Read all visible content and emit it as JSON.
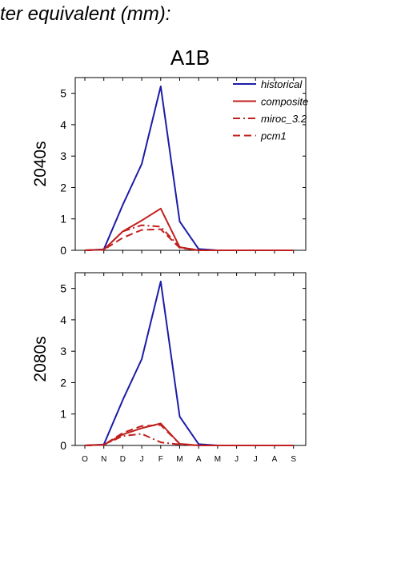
{
  "header": {
    "title": "ter equivalent (mm):",
    "scenario": "A1B"
  },
  "chart_data": [
    {
      "type": "line",
      "ylabel": "2040s",
      "x": [
        "O",
        "N",
        "D",
        "J",
        "F",
        "M",
        "A",
        "M",
        "J",
        "J",
        "A",
        "S"
      ],
      "ylim": [
        0,
        5.5
      ],
      "yticks": [
        0,
        1,
        2,
        3,
        4,
        5
      ],
      "legend_position": "top-right",
      "series": [
        {
          "name": "historical",
          "color": "#1c1ca8",
          "style": "solid",
          "values": [
            0.0,
            0.03,
            1.45,
            2.75,
            5.22,
            0.92,
            0.04,
            0.0,
            0.0,
            0.0,
            0.0,
            0.0
          ]
        },
        {
          "name": "composite",
          "color": "#c0201e",
          "style": "solid",
          "values": [
            0.0,
            0.02,
            0.6,
            0.95,
            1.33,
            0.1,
            0.0,
            0.0,
            0.0,
            0.0,
            0.0,
            0.0
          ]
        },
        {
          "name": "miroc_3.2",
          "color": "#c0201e",
          "style": "dashdot",
          "values": [
            0.0,
            0.02,
            0.6,
            0.8,
            0.75,
            0.1,
            0.0,
            0.0,
            0.0,
            0.0,
            0.0,
            0.0
          ]
        },
        {
          "name": "pcm1",
          "color": "#c0201e",
          "style": "dash",
          "values": [
            0.0,
            0.02,
            0.4,
            0.65,
            0.67,
            0.08,
            0.0,
            0.0,
            0.0,
            0.0,
            0.0,
            0.0
          ]
        }
      ]
    },
    {
      "type": "line",
      "ylabel": "2080s",
      "x": [
        "O",
        "N",
        "D",
        "J",
        "F",
        "M",
        "A",
        "M",
        "J",
        "J",
        "A",
        "S"
      ],
      "ylim": [
        0,
        5.5
      ],
      "yticks": [
        0,
        1,
        2,
        3,
        4,
        5
      ],
      "series": [
        {
          "name": "historical",
          "color": "#1c1ca8",
          "style": "solid",
          "values": [
            0.0,
            0.03,
            1.45,
            2.75,
            5.22,
            0.92,
            0.04,
            0.0,
            0.0,
            0.0,
            0.0,
            0.0
          ]
        },
        {
          "name": "composite",
          "color": "#c0201e",
          "style": "solid",
          "values": [
            0.0,
            0.02,
            0.35,
            0.55,
            0.7,
            0.05,
            0.0,
            0.0,
            0.0,
            0.0,
            0.0,
            0.0
          ]
        },
        {
          "name": "miroc_3.2",
          "color": "#c0201e",
          "style": "dashdot",
          "values": [
            0.0,
            0.02,
            0.3,
            0.37,
            0.1,
            0.03,
            0.0,
            0.0,
            0.0,
            0.0,
            0.0,
            0.0
          ]
        },
        {
          "name": "pcm1",
          "color": "#c0201e",
          "style": "dash",
          "values": [
            0.0,
            0.02,
            0.4,
            0.62,
            0.65,
            0.05,
            0.0,
            0.0,
            0.0,
            0.0,
            0.0,
            0.0
          ]
        }
      ]
    }
  ]
}
